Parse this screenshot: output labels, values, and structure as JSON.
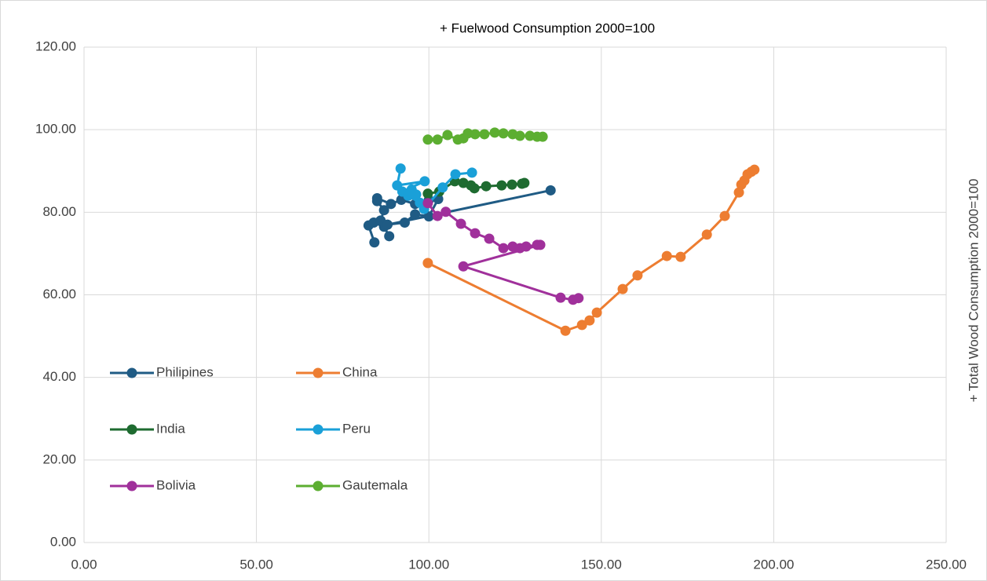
{
  "chart_data": {
    "type": "scatter",
    "title": "+ Fuelwood Consumption 2000=100",
    "y_label": "+ Total Wood Consumption 2000=100",
    "xlim": [
      0,
      250
    ],
    "ylim": [
      0,
      120
    ],
    "xticks": [
      {
        "value": 0,
        "label": "0.00"
      },
      {
        "value": 50,
        "label": "50.00"
      },
      {
        "value": 100,
        "label": "100.00"
      },
      {
        "value": 150,
        "label": "150.00"
      },
      {
        "value": 200,
        "label": "200.00"
      },
      {
        "value": 250,
        "label": "250.00"
      }
    ],
    "yticks": [
      {
        "value": 0,
        "label": "0.00"
      },
      {
        "value": 20,
        "label": "20.00"
      },
      {
        "value": 40,
        "label": "40.00"
      },
      {
        "value": 60,
        "label": "60.00"
      },
      {
        "value": 80,
        "label": "80.00"
      },
      {
        "value": 100,
        "label": "100.00"
      },
      {
        "value": 120,
        "label": "120.00"
      }
    ],
    "grid": true,
    "series": [
      {
        "name": "Philipines",
        "color": "#1f5b84",
        "x": [
          84.2,
          82.5,
          84.0,
          87.0,
          88.5,
          86.0,
          87.0,
          85.0,
          85.0,
          89.0,
          92.0,
          96.0,
          100.0,
          102.7,
          100.0,
          96.0,
          93.0,
          88.0,
          135.3
        ],
        "values": [
          72.7,
          76.8,
          77.5,
          76.5,
          74.2,
          78.0,
          80.5,
          82.7,
          83.4,
          82.0,
          83.0,
          82.0,
          83.0,
          83.2,
          79.0,
          79.5,
          77.5,
          77.0,
          85.3
        ]
      },
      {
        "name": "China",
        "color": "#ed7d31",
        "x": [
          99.7,
          139.6,
          144.4,
          146.6,
          148.7,
          156.2,
          160.5,
          169.0,
          173.0,
          180.6,
          185.8,
          189.9,
          190.6,
          191.5,
          192.4,
          193.5,
          194.4
        ],
        "values": [
          67.7,
          51.3,
          52.7,
          53.8,
          55.7,
          61.4,
          64.7,
          69.4,
          69.2,
          74.6,
          79.1,
          84.8,
          86.7,
          87.7,
          89.2,
          89.8,
          90.3
        ]
      },
      {
        "name": "India",
        "color": "#1e6b30",
        "x": [
          99.7,
          103.0,
          107.5,
          110.0,
          112.2,
          113.2,
          116.6,
          121.1,
          124.1,
          127.0,
          127.7
        ],
        "values": [
          84.5,
          85.0,
          87.5,
          87.1,
          86.5,
          85.8,
          86.3,
          86.5,
          86.7,
          86.9,
          87.1
        ]
      },
      {
        "name": "Peru",
        "color": "#1aa0d8",
        "x": [
          91.8,
          90.8,
          98.8,
          92.3,
          95.0,
          96.3,
          94.0,
          97.4,
          98.6,
          104.0,
          107.7,
          112.5
        ],
        "values": [
          90.6,
          86.5,
          87.5,
          85.0,
          85.5,
          84.3,
          84.0,
          82.3,
          80.8,
          86.0,
          89.2,
          89.6
        ]
      },
      {
        "name": "Bolivia",
        "color": "#a0309b",
        "x": [
          99.7,
          102.5,
          104.9,
          109.3,
          113.4,
          117.5,
          121.6,
          124.3,
          126.4,
          128.2,
          131.4,
          132.3,
          110.0,
          138.2,
          141.8,
          143.4
        ],
        "values": [
          82.2,
          79.1,
          80.1,
          77.2,
          74.9,
          73.6,
          71.3,
          71.7,
          71.3,
          71.7,
          72.1,
          72.1,
          66.9,
          59.3,
          58.8,
          59.2
        ]
      },
      {
        "name": "Gautemala",
        "color": "#5cae31",
        "x": [
          99.7,
          102.5,
          105.4,
          108.4,
          110.0,
          111.3,
          113.4,
          116.1,
          119.1,
          121.6,
          124.3,
          126.4,
          129.3,
          131.4,
          133.0
        ],
        "values": [
          97.6,
          97.6,
          98.7,
          97.6,
          97.9,
          99.1,
          98.9,
          98.9,
          99.3,
          99.1,
          98.9,
          98.5,
          98.5,
          98.3,
          98.3
        ]
      }
    ]
  }
}
